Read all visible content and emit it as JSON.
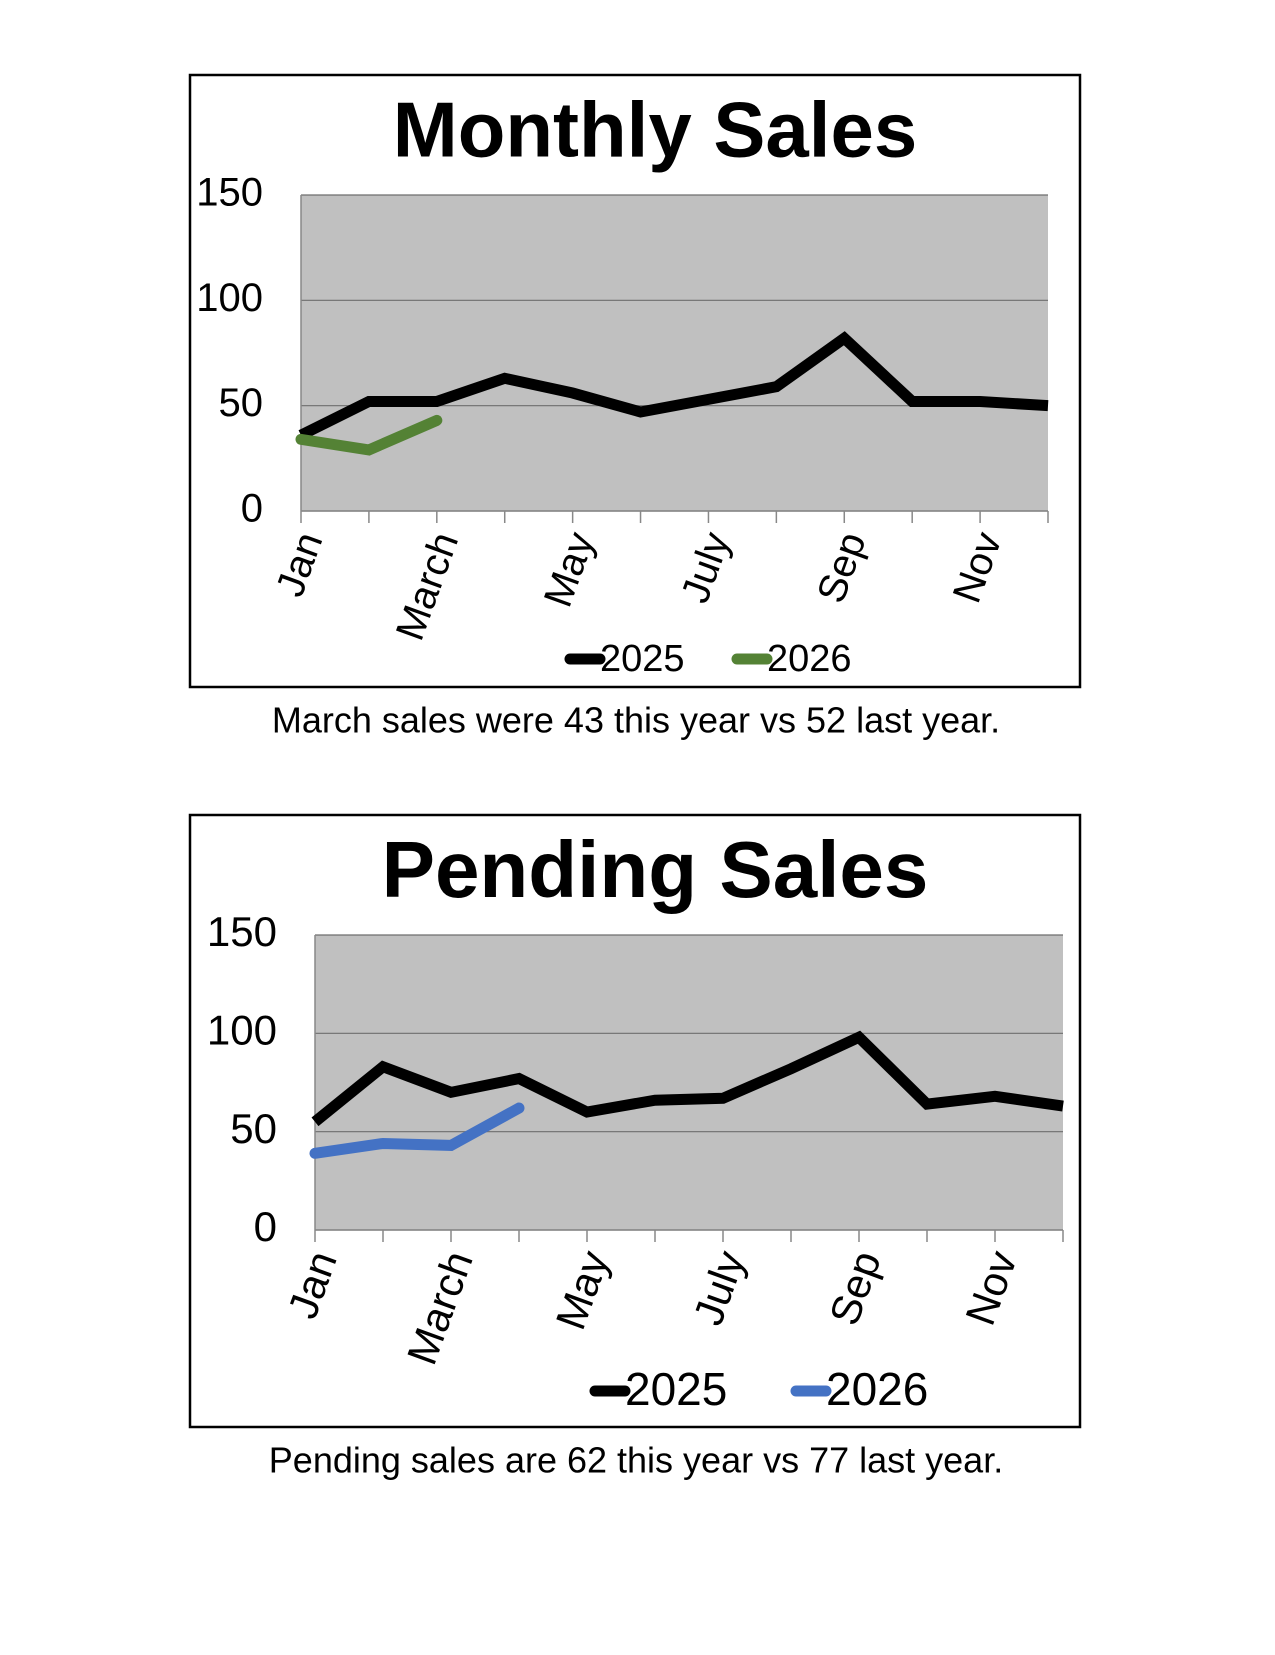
{
  "chart_data": [
    {
      "type": "line",
      "title": "Monthly Sales",
      "categories": [
        "Jan",
        null,
        "March",
        null,
        "May",
        null,
        "July",
        null,
        "Sep",
        null,
        "Nov",
        null
      ],
      "series": [
        {
          "name": "2025",
          "color": "#000000",
          "values": [
            36,
            52,
            52,
            63,
            56,
            47,
            53,
            59,
            82,
            52,
            52,
            50
          ]
        },
        {
          "name": "2026",
          "color": "#548235",
          "values": [
            34,
            29,
            43,
            null,
            null,
            null,
            null,
            null,
            null,
            null,
            null,
            null
          ]
        }
      ],
      "ylim": [
        0,
        150
      ],
      "yticks": [
        0,
        50,
        100,
        150
      ],
      "grid": true,
      "legend": "bottom",
      "caption": "March sales were 43 this year vs 52 last year."
    },
    {
      "type": "line",
      "title": "Pending Sales",
      "categories": [
        "Jan",
        null,
        "March",
        null,
        "May",
        null,
        "July",
        null,
        "Sep",
        null,
        "Nov",
        null
      ],
      "series": [
        {
          "name": "2025",
          "color": "#000000",
          "values": [
            55,
            83,
            70,
            77,
            60,
            66,
            67,
            82,
            98,
            64,
            68,
            63
          ]
        },
        {
          "name": "2026",
          "color": "#4472c4",
          "values": [
            39,
            44,
            43,
            62,
            null,
            null,
            null,
            null,
            null,
            null,
            null,
            null
          ]
        }
      ],
      "ylim": [
        0,
        150
      ],
      "yticks": [
        0,
        50,
        100,
        150
      ],
      "grid": true,
      "legend": "bottom",
      "caption": "Pending sales are 62 this year vs 77 last year."
    }
  ]
}
